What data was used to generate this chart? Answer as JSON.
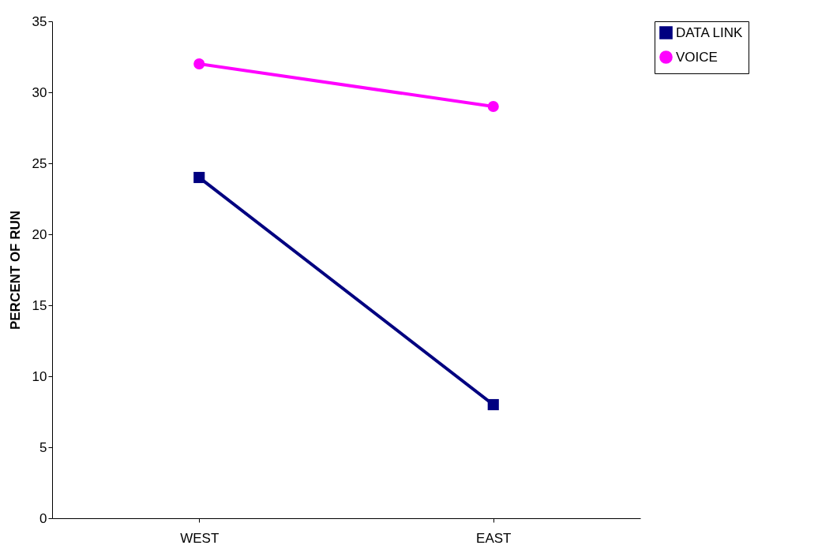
{
  "chart_data": {
    "type": "line",
    "ylabel": "PERCENT OF RUN",
    "categories": [
      "WEST",
      "EAST"
    ],
    "series": [
      {
        "name": "DATA LINK",
        "color": "#000080",
        "marker": "square",
        "values": [
          24,
          8
        ]
      },
      {
        "name": "VOICE",
        "color": "#ff00ff",
        "marker": "circle",
        "values": [
          32,
          29
        ]
      }
    ],
    "ylim": [
      0,
      35
    ],
    "yticks": [
      0,
      5,
      10,
      15,
      20,
      25,
      30,
      35
    ],
    "grid": false,
    "legend": "top right"
  }
}
